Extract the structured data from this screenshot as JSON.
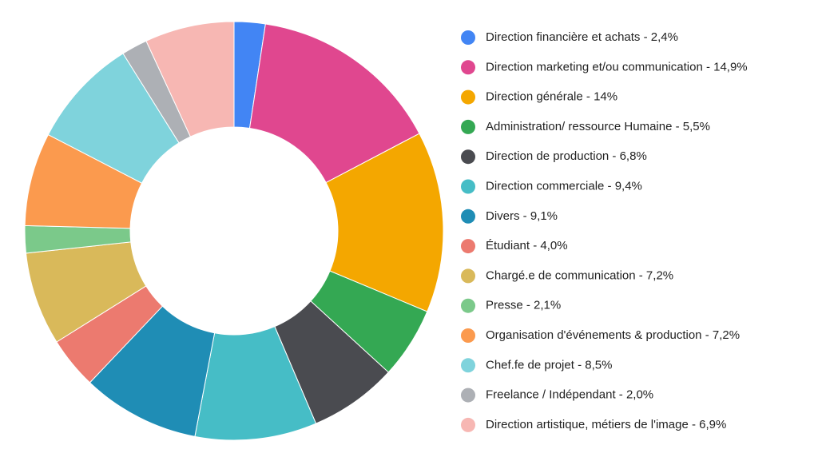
{
  "chart_data": {
    "type": "pie",
    "categories": [
      "Direction financière et achats - 2,4%",
      "Direction marketing et/ou communication - 14,9%",
      "Direction générale - 14%",
      "Administration/ ressource Humaine - 5,5%",
      "Direction de production - 6,8%",
      "Direction commerciale - 9,4%",
      "Divers - 9,1%",
      "Étudiant - 4,0%",
      "Chargé.e de communication - 7,2%",
      "Presse - 2,1%",
      "Organisation d'événements & production - 7,2%",
      "Chef.fe de projet - 8,5%",
      "Freelance / Indépendant - 2,0%",
      "Direction artistique, métiers de l'image - 6,9%"
    ],
    "values": [
      2.4,
      14.9,
      14,
      5.5,
      6.8,
      9.4,
      9.1,
      4.0,
      7.2,
      2.1,
      7.2,
      8.5,
      2.0,
      6.9
    ],
    "colors": [
      "#4285f4",
      "#e0478f",
      "#f4a700",
      "#34a853",
      "#4a4b50",
      "#46bdc6",
      "#1f8db5",
      "#ec7a6f",
      "#d9b95a",
      "#7bc98a",
      "#fb9a4e",
      "#7fd3dc",
      "#adb0b5",
      "#f7b7b3"
    ],
    "donut": true
  }
}
